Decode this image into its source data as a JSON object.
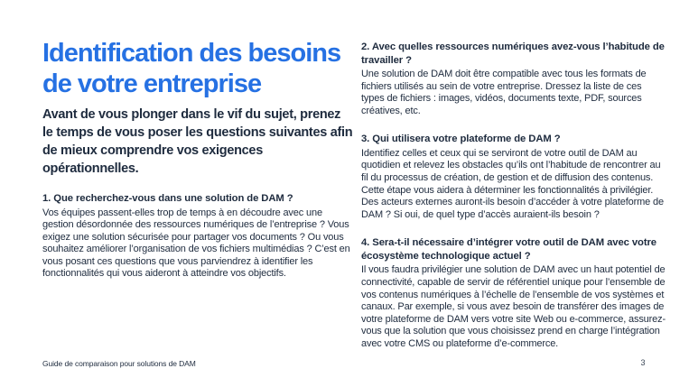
{
  "page": {
    "colors": {
      "accent": "#2671e3",
      "text": "#1e2b3e",
      "background": "#ffffff"
    },
    "title": "Identification des besoins de votre entreprise",
    "intro": "Avant de vous plonger dans le vif du sujet, prenez le temps de vous poser les questions suivantes afin de mieux comprendre vos exigences opérationnelles.",
    "questions": [
      {
        "heading": "1.  Que recherchez-vous dans une solution de DAM ?",
        "body": "Vos équipes passent-elles trop de temps à en découdre avec une gestion désordonnée des ressources numériques de l’entreprise ? Vous exigez une solution sécurisée pour partager vos documents ? Ou vous souhaitez améliorer l’organisation de vos fichiers multimédias ? C’est en vous posant ces questions que vous parviendrez à identifier les fonctionnalités qui vous aideront à atteindre vos objectifs."
      },
      {
        "heading": "2. Avec quelles ressources numériques avez-vous l’habitude de travailler ?",
        "body": "Une solution de DAM doit être compatible avec tous les formats de fichiers utilisés au sein de votre entreprise. Dressez la liste de ces types de fichiers : images, vidéos, documents texte, PDF, sources créatives, etc."
      },
      {
        "heading": "3. Qui utilisera votre plateforme de DAM ?",
        "body": "Identifiez celles et ceux qui se serviront de votre outil de DAM au quotidien et relevez les obstacles qu’ils ont l’habitude de rencontrer au fil du processus de création, de gestion et de diffusion des contenus. Cette étape vous aidera à déterminer les fonctionnalités à privilégier. Des acteurs externes auront-ils besoin d’accéder à votre plateforme de DAM ? Si oui, de quel type d’accès auraient-ils besoin ?"
      },
      {
        "heading": "4. Sera-t-il nécessaire d’intégrer votre outil de DAM avec votre écosystème technologique actuel ?",
        "body": "Il vous faudra privilégier une solution de DAM avec un haut potentiel de connectivité, capable de servir de référentiel unique pour l’ensemble de vos contenus numériques à l’échelle de l’ensemble de vos systèmes et canaux. Par exemple, si vous avez besoin de transférer des images de votre plateforme de DAM vers votre site Web ou e-commerce, assurez-vous que la solution que vous choisissez prend en charge l’intégration avec votre CMS ou plateforme d’e-commerce."
      }
    ],
    "footer": {
      "label": "Guide de comparaison pour solutions de DAM",
      "page_number": "3"
    }
  }
}
